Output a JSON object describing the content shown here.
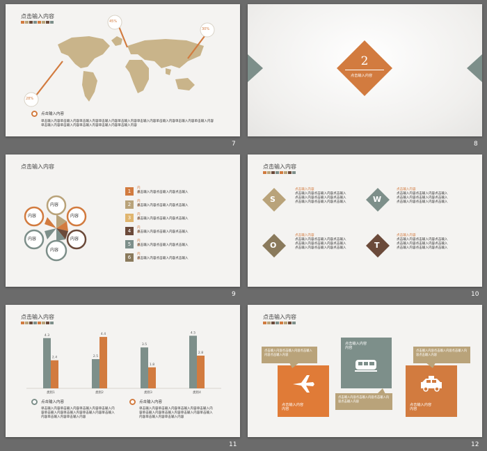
{
  "slides": {
    "s7": {
      "number": "7",
      "title": "点击输入内容",
      "pins": [
        "45%",
        "30%",
        "28%"
      ],
      "legend_title": "点击输入内容",
      "text": "单击输入内容单击输入内容单击输入内容单击输入内容单击输入内容单击输入内容单击输入内容单击输入内容单击输入内容单击输入内容单击输入内容单击输入内容单击输入内容单击输入内容"
    },
    "s8": {
      "number": "8",
      "digit": "2",
      "caption": "点击输入内容"
    },
    "s9": {
      "number": "9",
      "title": "点击输入内容",
      "petals": [
        "内容",
        "内容",
        "内容",
        "内容",
        "内容",
        "内容"
      ],
      "items": [
        {
          "n": "1",
          "head": "内容",
          "text": "点击输入内容点击输入内容点击输入"
        },
        {
          "n": "2",
          "head": "内容",
          "text": "点击输入内容点击输入内容点击输入"
        },
        {
          "n": "3",
          "head": "内容",
          "text": "点击输入内容点击输入内容点击输入"
        },
        {
          "n": "4",
          "head": "内容",
          "text": "点击输入内容点击输入内容点击输入"
        },
        {
          "n": "5",
          "head": "内容",
          "text": "点击输入内容点击输入内容点击输入"
        },
        {
          "n": "6",
          "head": "内容",
          "text": "点击输入内容点击输入内容点击输入"
        }
      ]
    },
    "s10": {
      "number": "10",
      "title": "点击输入内容",
      "swot": [
        {
          "letter": "S",
          "head": "点击输入内容",
          "lines": [
            "点击输入内容点击输入内容点击输入",
            "点击输入内容点击输入内容点击输入",
            "点击输入内容点击输入内容点击输入"
          ]
        },
        {
          "letter": "W",
          "head": "点击输入内容",
          "lines": [
            "点击输入内容点击输入内容点击输入",
            "点击输入内容点击输入内容点击输入",
            "点击输入内容点击输入内容点击输入"
          ]
        },
        {
          "letter": "O",
          "head": "点击输入内容",
          "lines": [
            "点击输入内容点击输入内容点击输入",
            "点击输入内容点击输入内容点击输入",
            "点击输入内容点击输入内容点击输入"
          ]
        },
        {
          "letter": "T",
          "head": "点击输入内容",
          "lines": [
            "点击输入内容点击输入内容点击输入",
            "点击输入内容点击输入内容点击输入",
            "点击输入内容点击输入内容点击输入"
          ]
        }
      ]
    },
    "s11": {
      "number": "11",
      "title": "点击输入内容",
      "legend": [
        "点击输入内容",
        "点击输入内容"
      ],
      "text": "单击输入内容单击输入内容单击输入内容单击输入内容单击输入内容单击输入内容单击输入内容单击输入内容单击输入内容单击输入内容"
    },
    "s12": {
      "number": "12",
      "title": "点击输入内容",
      "box_mid_title": "点击输入内容",
      "box_mid_sub": "内容",
      "box_left_title": "点击输入内容",
      "box_left_sub": "内容",
      "box_right_title": "点击输入内容",
      "box_right_sub": "内容",
      "note_left": "点击输入内容点击输入内容点击输入内容点击输入内容",
      "note_mid": "点击输入内容点击输入内容点击输入内容点击输入内容",
      "note_right": "点击输入内容点击输入内容点击输入内容点击输入内容"
    }
  },
  "colors": {
    "orange": "#d27b3f",
    "tan": "#b9a37a",
    "brown": "#6b4a3a",
    "gray": "#7d8f8a",
    "bg": "#6b6b6b"
  },
  "chart_data": {
    "type": "bar",
    "categories": [
      "类别1",
      "类别2",
      "类别3",
      "类别4"
    ],
    "series": [
      {
        "values": [
          4.3,
          2.5,
          3.5,
          4.5
        ]
      },
      {
        "values": [
          2.4,
          4.4,
          1.8,
          2.8
        ]
      }
    ],
    "ylim": [
      0,
      5
    ]
  }
}
